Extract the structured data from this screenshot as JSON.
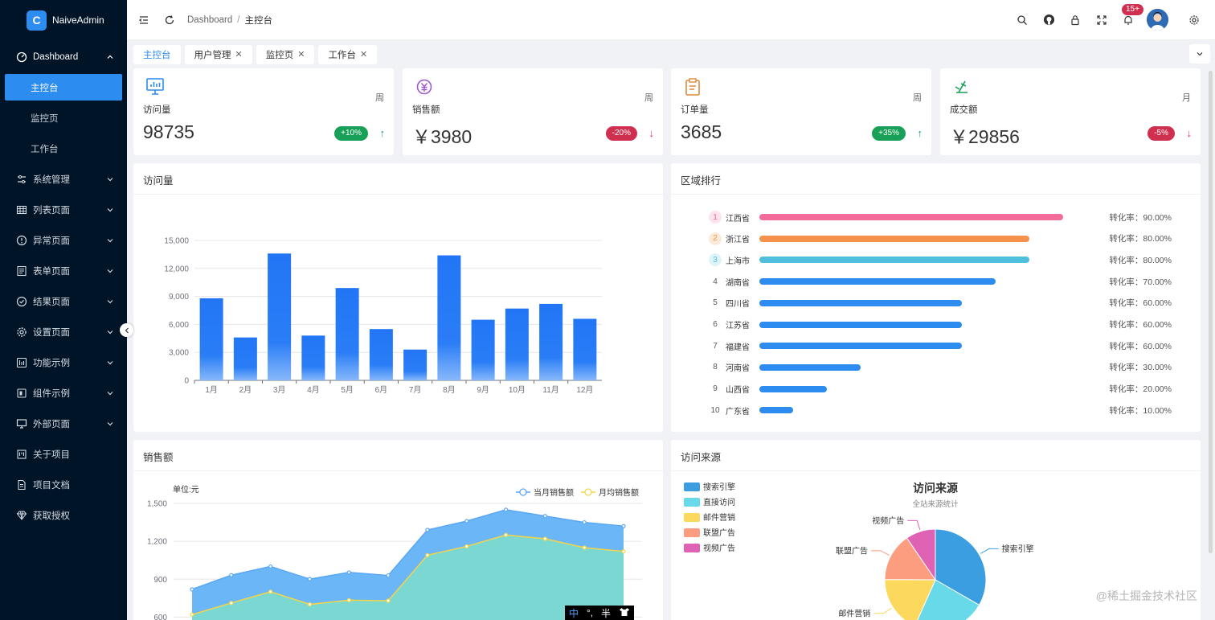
{
  "app": {
    "name": "NaiveAdmin",
    "logo_letter": "C"
  },
  "sidebar": {
    "dashboard": {
      "label": "Dashboard",
      "children": [
        "主控台",
        "监控页",
        "工作台"
      ]
    },
    "items": [
      {
        "label": "系统管理",
        "icon": "sliders-icon"
      },
      {
        "label": "列表页面",
        "icon": "table-icon"
      },
      {
        "label": "异常页面",
        "icon": "alert-icon"
      },
      {
        "label": "表单页面",
        "icon": "form-icon"
      },
      {
        "label": "结果页面",
        "icon": "check-circle-icon"
      },
      {
        "label": "设置页面",
        "icon": "gear-icon"
      },
      {
        "label": "功能示例",
        "icon": "function-icon"
      },
      {
        "label": "组件示例",
        "icon": "component-icon"
      },
      {
        "label": "外部页面",
        "icon": "monitor-icon"
      },
      {
        "label": "关于项目",
        "icon": "project-icon"
      },
      {
        "label": "项目文档",
        "icon": "doc-icon"
      },
      {
        "label": "获取授权",
        "icon": "diamond-icon"
      }
    ]
  },
  "header": {
    "breadcrumb": [
      "Dashboard",
      "主控台"
    ],
    "breadcrumb_sep": "/",
    "notification_badge": "15+"
  },
  "tabs": [
    {
      "label": "主控台",
      "closable": false
    },
    {
      "label": "用户管理",
      "closable": true
    },
    {
      "label": "监控页",
      "closable": true
    },
    {
      "label": "工作台",
      "closable": true
    }
  ],
  "stats": [
    {
      "title": "访问量",
      "period": "周",
      "value": "98735",
      "change": "+10%",
      "trend": "up",
      "color": "#2d8cf0"
    },
    {
      "title": "销售额",
      "period": "周",
      "value": "￥3980",
      "change": "-20%",
      "trend": "down",
      "color": "#9b59d6"
    },
    {
      "title": "订单量",
      "period": "周",
      "value": "3685",
      "change": "+35%",
      "trend": "up",
      "color": "#e08a3c"
    },
    {
      "title": "成交额",
      "period": "月",
      "value": "￥29856",
      "change": "-5%",
      "trend": "down",
      "color": "#18a058"
    }
  ],
  "panels": {
    "visits": "访问量",
    "region": "区域排行",
    "sales": "销售额",
    "source": "访问来源"
  },
  "chart_data": [
    {
      "type": "bar",
      "title": "访问量",
      "categories": [
        "1月",
        "2月",
        "3月",
        "4月",
        "5月",
        "6月",
        "7月",
        "8月",
        "9月",
        "10月",
        "11月",
        "12月"
      ],
      "values": [
        8800,
        4600,
        13600,
        4800,
        9900,
        5500,
        3300,
        13400,
        6500,
        7700,
        8200,
        6600
      ],
      "ylim": [
        0,
        15000
      ],
      "yticks": [
        "0",
        "3,000",
        "6,000",
        "9,000",
        "12,000",
        "15,000"
      ],
      "yticks_values": [
        0,
        3000,
        6000,
        9000,
        12000,
        15000
      ],
      "color": "#2679f5"
    },
    {
      "type": "table",
      "title": "区域排行",
      "rate_label": "转化率：",
      "rows": [
        {
          "rank": "1",
          "province": "江西省",
          "rate": 90,
          "rate_text": "90.00%",
          "color": "#f26b9b",
          "badge": "#fde4ec"
        },
        {
          "rank": "2",
          "province": "浙江省",
          "rate": 80,
          "rate_text": "80.00%",
          "color": "#f6914b",
          "badge": "#fdebd9"
        },
        {
          "rank": "3",
          "province": "上海市",
          "rate": 80,
          "rate_text": "80.00%",
          "color": "#4fbfdc",
          "badge": "#dff4f8"
        },
        {
          "rank": "4",
          "province": "湖南省",
          "rate": 70,
          "rate_text": "70.00%",
          "color": "#2d8cf0",
          "badge": ""
        },
        {
          "rank": "5",
          "province": "四川省",
          "rate": 60,
          "rate_text": "60.00%",
          "color": "#2d8cf0",
          "badge": ""
        },
        {
          "rank": "6",
          "province": "江苏省",
          "rate": 60,
          "rate_text": "60.00%",
          "color": "#2d8cf0",
          "badge": ""
        },
        {
          "rank": "7",
          "province": "福建省",
          "rate": 60,
          "rate_text": "60.00%",
          "color": "#2d8cf0",
          "badge": ""
        },
        {
          "rank": "8",
          "province": "河南省",
          "rate": 30,
          "rate_text": "30.00%",
          "color": "#2d8cf0",
          "badge": ""
        },
        {
          "rank": "9",
          "province": "山西省",
          "rate": 20,
          "rate_text": "20.00%",
          "color": "#2d8cf0",
          "badge": ""
        },
        {
          "rank": "10",
          "province": "广东省",
          "rate": 10,
          "rate_text": "10.00%",
          "color": "#2d8cf0",
          "badge": ""
        }
      ]
    },
    {
      "type": "area",
      "title": "销售额",
      "unit_label": "单位:元",
      "ylim": [
        450,
        1500
      ],
      "yticks": [
        "600",
        "900",
        "1,200",
        "1,500"
      ],
      "yticks_values": [
        600,
        900,
        1200,
        1500
      ],
      "series": [
        {
          "name": "当月销售额",
          "values": [
            820,
            932,
            1001,
            901,
            954,
            930,
            1290,
            1360,
            1450,
            1400,
            1350,
            1320
          ],
          "color": "#5aa7f5",
          "fill": "#6bb6f7"
        },
        {
          "name": "月均销售额",
          "values": [
            620,
            712,
            801,
            701,
            734,
            730,
            1090,
            1160,
            1250,
            1220,
            1150,
            1120
          ],
          "color": "#f5d547",
          "fill": "#7ad7d2"
        }
      ]
    },
    {
      "type": "pie",
      "title": "访问来源",
      "subtitle": "全站来源统计",
      "slices": [
        {
          "name": "搜索引擎",
          "value": 1048,
          "color": "#3a9ee0"
        },
        {
          "name": "直接访问",
          "value": 735,
          "color": "#68d9e8"
        },
        {
          "name": "邮件营销",
          "value": 580,
          "color": "#fcd85c"
        },
        {
          "name": "联盟广告",
          "value": 484,
          "color": "#fb9d7e"
        },
        {
          "name": "视频广告",
          "value": 300,
          "color": "#e062b5"
        }
      ]
    }
  ],
  "ime": {
    "lang": "中",
    "punct": "°,",
    "width": "半"
  },
  "watermark": "@稀土掘金技术社区"
}
